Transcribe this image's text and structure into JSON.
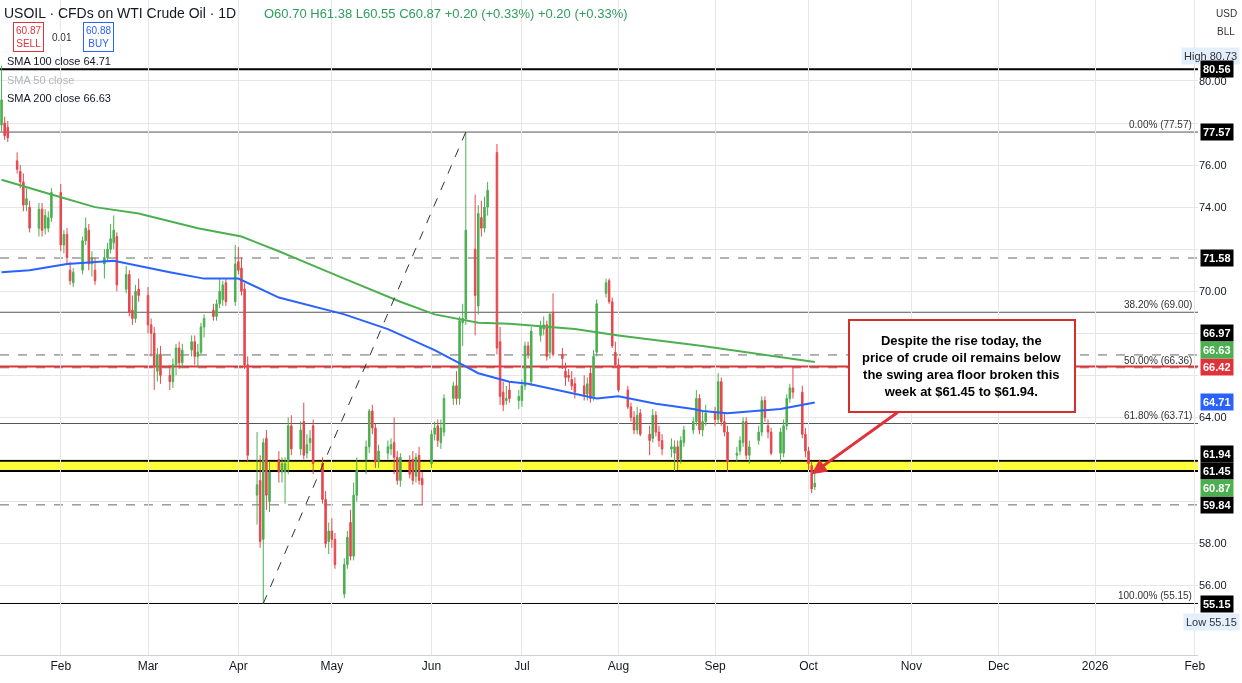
{
  "chart_data": {
    "type": "candlestick",
    "title": "USOIL · CFDs on WTI Crude Oil · 1D",
    "x": [
      "2025-01-15",
      "2025-01-16",
      "2025-01-17",
      "2025-01-20",
      "2025-01-21",
      "2025-01-22",
      "2025-01-23",
      "2025-01-24",
      "2025-01-27",
      "2025-01-28",
      "2025-01-29",
      "2025-01-30",
      "2025-01-31",
      "2025-02-03",
      "2025-02-04",
      "2025-02-05",
      "2025-02-06",
      "2025-02-07",
      "2025-02-10",
      "2025-02-11",
      "2025-02-12",
      "2025-02-13",
      "2025-02-14",
      "2025-02-17",
      "2025-02-18",
      "2025-02-19",
      "2025-02-20",
      "2025-02-21",
      "2025-02-24",
      "2025-02-25",
      "2025-02-26",
      "2025-02-27",
      "2025-02-28",
      "2025-03-03",
      "2025-03-04",
      "2025-03-05",
      "2025-03-06",
      "2025-03-07",
      "2025-03-10",
      "2025-03-11",
      "2025-03-12",
      "2025-03-13",
      "2025-03-14",
      "2025-03-17",
      "2025-03-18",
      "2025-03-19",
      "2025-03-20",
      "2025-03-21",
      "2025-03-24",
      "2025-03-25",
      "2025-03-26",
      "2025-03-27",
      "2025-03-28",
      "2025-03-31",
      "2025-04-01",
      "2025-04-02",
      "2025-04-03",
      "2025-04-04",
      "2025-04-07",
      "2025-04-08",
      "2025-04-09",
      "2025-04-10",
      "2025-04-11",
      "2025-04-14",
      "2025-04-15",
      "2025-04-16",
      "2025-04-17",
      "2025-04-18",
      "2025-04-21",
      "2025-04-22",
      "2025-04-23",
      "2025-04-24",
      "2025-04-25",
      "2025-04-28",
      "2025-04-29",
      "2025-04-30",
      "2025-05-01",
      "2025-05-02",
      "2025-05-05",
      "2025-05-06",
      "2025-05-07",
      "2025-05-08",
      "2025-05-09",
      "2025-05-12",
      "2025-05-13",
      "2025-05-14",
      "2025-05-15",
      "2025-05-16",
      "2025-05-19",
      "2025-05-20",
      "2025-05-21",
      "2025-05-22",
      "2025-05-23",
      "2025-05-26",
      "2025-05-27",
      "2025-05-28",
      "2025-05-29",
      "2025-05-30",
      "2025-06-02",
      "2025-06-03",
      "2025-06-04",
      "2025-06-05",
      "2025-06-06",
      "2025-06-09",
      "2025-06-10",
      "2025-06-11",
      "2025-06-12",
      "2025-06-13",
      "2025-06-16",
      "2025-06-17",
      "2025-06-18",
      "2025-06-19",
      "2025-06-20",
      "2025-06-23",
      "2025-06-24",
      "2025-06-25",
      "2025-06-26",
      "2025-06-27",
      "2025-06-30",
      "2025-07-01",
      "2025-07-02",
      "2025-07-03",
      "2025-07-04",
      "2025-07-07",
      "2025-07-08",
      "2025-07-09",
      "2025-07-10",
      "2025-07-11",
      "2025-07-14",
      "2025-07-15",
      "2025-07-16",
      "2025-07-17",
      "2025-07-18",
      "2025-07-21",
      "2025-07-22",
      "2025-07-23",
      "2025-07-24",
      "2025-07-25",
      "2025-07-28",
      "2025-07-29",
      "2025-07-30",
      "2025-07-31",
      "2025-08-01",
      "2025-08-04",
      "2025-08-05",
      "2025-08-06",
      "2025-08-07",
      "2025-08-08",
      "2025-08-11",
      "2025-08-12",
      "2025-08-13",
      "2025-08-14",
      "2025-08-15",
      "2025-08-18",
      "2025-08-19",
      "2025-08-20",
      "2025-08-21",
      "2025-08-22",
      "2025-08-25",
      "2025-08-26",
      "2025-08-27",
      "2025-08-28",
      "2025-08-29",
      "2025-09-01",
      "2025-09-02",
      "2025-09-03",
      "2025-09-04",
      "2025-09-05",
      "2025-09-08",
      "2025-09-09",
      "2025-09-10",
      "2025-09-11",
      "2025-09-12",
      "2025-09-15",
      "2025-09-16",
      "2025-09-17",
      "2025-09-18",
      "2025-09-19",
      "2025-09-22",
      "2025-09-23",
      "2025-09-24",
      "2025-09-25",
      "2025-09-26",
      "2025-09-29",
      "2025-09-30",
      "2025-10-01",
      "2025-10-02",
      "2025-10-03"
    ],
    "ohlc": [
      [
        77.9,
        80.73,
        77.6,
        79.1
      ],
      [
        78.0,
        78.3,
        77.2,
        77.4
      ],
      [
        77.8,
        78.1,
        77.1,
        77.3
      ],
      [
        76.2,
        76.6,
        75.6,
        75.8
      ],
      [
        75.7,
        76.0,
        74.9,
        75.2
      ],
      [
        75.2,
        75.6,
        73.8,
        74.1
      ],
      [
        74.1,
        74.9,
        73.8,
        74.4
      ],
      [
        74.0,
        74.3,
        72.8,
        73.0
      ],
      [
        73.0,
        74.2,
        72.6,
        73.9
      ],
      [
        73.9,
        74.2,
        72.6,
        72.9
      ],
      [
        73.0,
        73.9,
        72.7,
        73.6
      ],
      [
        73.0,
        73.8,
        72.8,
        73.5
      ],
      [
        73.5,
        74.9,
        73.3,
        74.7
      ],
      [
        74.7,
        75.1,
        71.9,
        72.2
      ],
      [
        72.2,
        72.9,
        71.8,
        72.7
      ],
      [
        72.7,
        73.0,
        71.3,
        71.6
      ],
      [
        71.0,
        71.4,
        70.3,
        70.5
      ],
      [
        70.4,
        71.1,
        70.2,
        70.9
      ],
      [
        71.0,
        72.6,
        70.8,
        72.4
      ],
      [
        72.4,
        73.5,
        72.2,
        73.0
      ],
      [
        72.9,
        73.2,
        71.0,
        71.3
      ],
      [
        71.3,
        71.9,
        70.7,
        71.6
      ],
      [
        71.0,
        71.6,
        70.3,
        70.5
      ],
      [
        71.3,
        72.0,
        70.6,
        71.6
      ],
      [
        71.6,
        72.3,
        71.4,
        72.0
      ],
      [
        72.0,
        73.2,
        71.8,
        72.5
      ],
      [
        72.3,
        73.6,
        72.0,
        72.9
      ],
      [
        72.6,
        72.8,
        70.0,
        70.3
      ],
      [
        70.1,
        71.2,
        69.9,
        70.8
      ],
      [
        70.8,
        71.0,
        68.8,
        69.0
      ],
      [
        69.1,
        69.8,
        68.4,
        68.7
      ],
      [
        68.7,
        70.3,
        68.5,
        70.0
      ],
      [
        70.1,
        70.6,
        69.5,
        69.8
      ],
      [
        69.8,
        70.2,
        68.0,
        68.4
      ],
      [
        68.4,
        68.7,
        66.9,
        68.0
      ],
      [
        68.0,
        68.3,
        65.3,
        66.4
      ],
      [
        66.2,
        67.3,
        65.7,
        67.0
      ],
      [
        67.0,
        67.4,
        65.6,
        66.0
      ],
      [
        66.0,
        66.5,
        65.3,
        65.7
      ],
      [
        65.7,
        66.8,
        65.4,
        66.5
      ],
      [
        66.5,
        67.5,
        66.0,
        67.3
      ],
      [
        67.3,
        67.6,
        66.3,
        66.6
      ],
      [
        66.6,
        67.5,
        66.4,
        67.2
      ],
      [
        67.2,
        67.9,
        66.9,
        67.6
      ],
      [
        67.6,
        67.9,
        66.5,
        66.9
      ],
      [
        66.9,
        67.5,
        66.4,
        67.1
      ],
      [
        67.1,
        68.5,
        67.0,
        68.3
      ],
      [
        68.3,
        68.9,
        67.8,
        68.7
      ],
      [
        69.1,
        69.4,
        68.6,
        68.8
      ],
      [
        68.8,
        69.6,
        68.6,
        69.4
      ],
      [
        69.4,
        70.6,
        69.2,
        70.0
      ],
      [
        69.6,
        70.5,
        69.3,
        70.3
      ],
      [
        70.4,
        70.6,
        69.3,
        69.5
      ],
      [
        69.5,
        72.2,
        69.3,
        71.3
      ],
      [
        71.4,
        72.1,
        70.8,
        71.0
      ],
      [
        71.1,
        71.6,
        69.8,
        70.0
      ],
      [
        70.1,
        70.4,
        66.3,
        66.5
      ],
      [
        66.5,
        66.9,
        61.9,
        62.2
      ],
      [
        60.3,
        63.3,
        58.9,
        60.8
      ],
      [
        61.0,
        62.2,
        57.8,
        58.1
      ],
      [
        58.2,
        63.0,
        55.15,
        62.8
      ],
      [
        63.0,
        63.4,
        59.6,
        60.3
      ],
      [
        60.0,
        61.9,
        59.5,
        61.4
      ],
      [
        62.0,
        62.4,
        60.9,
        61.4
      ],
      [
        61.4,
        62.1,
        60.9,
        61.8
      ],
      [
        61.4,
        62.1,
        59.9,
        61.8
      ],
      [
        61.9,
        64.0,
        61.3,
        63.6
      ],
      [
        63.6,
        64.1,
        62.2,
        62.5
      ],
      [
        62.5,
        63.8,
        62.2,
        63.4
      ],
      [
        63.8,
        64.7,
        62.0,
        62.2
      ],
      [
        62.3,
        63.2,
        62.05,
        62.7
      ],
      [
        62.8,
        63.4,
        62.4,
        63.0
      ],
      [
        63.6,
        63.9,
        61.3,
        61.8
      ],
      [
        61.8,
        62.1,
        59.9,
        60.1
      ],
      [
        60.1,
        60.5,
        57.8,
        58.0
      ],
      [
        58.1,
        59.0,
        57.5,
        58.6
      ],
      [
        58.6,
        59.2,
        57.8,
        58.2
      ],
      [
        58.2,
        58.5,
        56.8,
        57.0
      ],
      [
        55.6,
        57.3,
        55.4,
        57.0
      ],
      [
        57.0,
        58.6,
        56.8,
        58.3
      ],
      [
        59.0,
        59.6,
        57.2,
        57.4
      ],
      [
        57.4,
        60.9,
        57.2,
        60.3
      ],
      [
        60.3,
        62.1,
        60.0,
        61.5
      ],
      [
        62.0,
        62.9,
        61.3,
        62.6
      ],
      [
        62.6,
        64.4,
        62.3,
        64.3
      ],
      [
        64.3,
        64.6,
        63.2,
        63.5
      ],
      [
        63.5,
        63.7,
        61.6,
        61.9
      ],
      [
        61.9,
        62.7,
        61.6,
        62.4
      ],
      [
        62.3,
        62.9,
        62.0,
        62.6
      ],
      [
        62.5,
        63.0,
        62.2,
        62.7
      ],
      [
        62.8,
        64.0,
        61.3,
        62.1
      ],
      [
        62.1,
        62.4,
        60.8,
        61.0
      ],
      [
        61.0,
        62.3,
        60.7,
        62.1
      ],
      [
        61.9,
        62.2,
        61.1,
        61.3
      ],
      [
        62.0,
        62.4,
        60.8,
        61.0
      ],
      [
        61.2,
        62.3,
        60.9,
        62.1
      ],
      [
        62.2,
        62.6,
        60.8,
        61.0
      ],
      [
        61.1,
        61.4,
        59.84,
        60.8
      ],
      [
        61.8,
        63.4,
        61.6,
        63.2
      ],
      [
        63.2,
        63.8,
        62.9,
        63.5
      ],
      [
        63.6,
        63.9,
        62.6,
        62.9
      ],
      [
        62.8,
        63.9,
        62.5,
        63.5
      ],
      [
        63.3,
        65.1,
        63.1,
        64.9
      ],
      [
        64.9,
        65.7,
        64.6,
        65.5
      ],
      [
        65.5,
        66.2,
        64.6,
        64.9
      ],
      [
        64.9,
        68.8,
        64.6,
        68.6
      ],
      [
        68.5,
        69.4,
        67.4,
        68.7
      ],
      [
        68.7,
        77.57,
        68.4,
        72.9
      ],
      [
        72.0,
        74.6,
        67.9,
        69.8
      ],
      [
        69.3,
        74.1,
        68.9,
        73.7
      ],
      [
        73.5,
        74.3,
        72.6,
        73.0
      ],
      [
        73.0,
        74.5,
        72.8,
        74.0
      ],
      [
        74.0,
        75.2,
        73.6,
        74.8
      ],
      [
        76.6,
        77.0,
        67.0,
        67.3
      ],
      [
        67.6,
        68.3,
        64.6,
        65.0
      ],
      [
        65.2,
        65.7,
        64.3,
        64.6
      ],
      [
        64.8,
        65.5,
        64.6,
        64.9
      ],
      [
        65.3,
        65.7,
        64.7,
        64.9
      ],
      [
        64.8,
        65.3,
        64.4,
        65.0
      ],
      [
        64.8,
        65.8,
        64.5,
        65.5
      ],
      [
        65.5,
        67.6,
        65.3,
        67.4
      ],
      [
        67.4,
        67.6,
        66.8,
        67.0
      ],
      [
        65.7,
        68.3,
        65.5,
        68.1
      ],
      [
        67.9,
        68.6,
        67.6,
        68.3
      ],
      [
        68.2,
        68.8,
        67.9,
        68.4
      ],
      [
        68.4,
        68.6,
        66.7,
        66.9
      ],
      [
        67.1,
        69.0,
        66.8,
        68.9
      ],
      [
        69.0,
        69.9,
        66.9,
        67.0
      ],
      [
        67.0,
        67.3,
        66.3,
        66.8
      ],
      [
        66.2,
        66.6,
        65.5,
        65.9
      ],
      [
        66.0,
        66.3,
        65.7,
        65.9
      ],
      [
        65.8,
        66.2,
        65.3,
        65.5
      ],
      [
        65.6,
        65.9,
        64.9,
        65.2
      ],
      [
        65.5,
        66.0,
        64.8,
        65.1
      ],
      [
        65.1,
        65.9,
        64.8,
        65.6
      ],
      [
        66.1,
        66.4,
        64.7,
        64.9
      ],
      [
        65.0,
        67.2,
        64.8,
        66.9
      ],
      [
        67.1,
        69.6,
        66.9,
        69.4
      ],
      [
        69.9,
        70.6,
        69.7,
        70.4
      ],
      [
        70.5,
        70.6,
        69.4,
        69.5
      ],
      [
        69.5,
        69.7,
        67.3,
        67.4
      ],
      [
        67.1,
        67.6,
        66.4,
        66.5
      ],
      [
        66.5,
        66.8,
        65.2,
        65.3
      ],
      [
        65.3,
        65.5,
        64.4,
        64.5
      ],
      [
        64.5,
        64.7,
        63.8,
        64.0
      ],
      [
        64.0,
        64.3,
        63.2,
        63.4
      ],
      [
        63.4,
        64.5,
        63.2,
        64.1
      ],
      [
        64.2,
        64.4,
        63.1,
        63.2
      ],
      [
        63.2,
        63.6,
        62.2,
        62.9
      ],
      [
        63.0,
        64.4,
        62.8,
        64.1
      ],
      [
        64.1,
        64.3,
        63.1,
        63.3
      ],
      [
        63.3,
        63.6,
        62.6,
        62.9
      ],
      [
        62.9,
        63.2,
        62.2,
        62.5
      ],
      [
        62.5,
        63.0,
        62.1,
        62.6
      ],
      [
        62.3,
        62.9,
        61.45,
        62.6
      ],
      [
        62.6,
        62.9,
        61.5,
        62.0
      ],
      [
        62.0,
        63.1,
        61.8,
        62.9
      ],
      [
        62.8,
        63.6,
        62.6,
        63.4
      ],
      [
        63.4,
        64.0,
        63.2,
        63.8
      ],
      [
        63.8,
        65.3,
        63.6,
        64.9
      ],
      [
        64.9,
        65.1,
        63.2,
        63.4
      ],
      [
        63.4,
        64.3,
        63.1,
        63.8
      ],
      [
        63.8,
        64.6,
        63.6,
        64.2
      ],
      [
        64.2,
        64.5,
        63.6,
        63.9
      ],
      [
        63.9,
        66.1,
        63.7,
        65.7
      ],
      [
        65.7,
        65.9,
        63.6,
        63.8
      ],
      [
        63.8,
        64.2,
        63.1,
        63.3
      ],
      [
        63.3,
        63.6,
        61.4,
        61.9
      ],
      [
        62.2,
        62.6,
        61.9,
        62.3
      ],
      [
        62.4,
        63.1,
        62.2,
        62.9
      ],
      [
        62.8,
        64.0,
        62.6,
        63.8
      ],
      [
        63.8,
        64.0,
        62.0,
        62.2
      ],
      [
        62.2,
        62.9,
        61.8,
        62.6
      ],
      [
        62.9,
        63.6,
        62.7,
        63.3
      ],
      [
        63.3,
        65.0,
        63.1,
        64.8
      ],
      [
        64.8,
        65.0,
        63.8,
        64.0
      ],
      [
        63.6,
        63.9,
        63.0,
        63.3
      ],
      [
        63.3,
        63.5,
        62.2,
        62.3
      ],
      [
        62.3,
        63.5,
        61.8,
        63.3
      ],
      [
        62.3,
        63.9,
        62.1,
        63.6
      ],
      [
        63.6,
        65.1,
        63.4,
        64.9
      ],
      [
        64.9,
        65.6,
        64.7,
        65.4
      ],
      [
        65.4,
        66.4,
        64.9,
        65.2
      ],
      [
        65.2,
        65.5,
        63.0,
        63.2
      ],
      [
        63.2,
        63.5,
        62.1,
        62.4
      ],
      [
        62.4,
        62.6,
        61.5,
        61.8
      ],
      [
        61.7,
        61.9,
        60.4,
        60.6
      ],
      [
        60.7,
        61.38,
        60.55,
        60.87
      ]
    ],
    "series": [
      {
        "type": "line",
        "color": "#2962ff",
        "x": [
          "2025-01-15",
          "2025-01-24",
          "2025-02-05",
          "2025-02-20",
          "2025-03-10",
          "2025-03-21",
          "2025-04-01",
          "2025-04-14",
          "2025-05-05",
          "2025-05-19",
          "2025-06-03",
          "2025-06-12",
          "2025-06-17",
          "2025-06-27",
          "2025-07-03",
          "2025-07-25",
          "2025-08-01",
          "2025-08-13",
          "2025-08-25",
          "2025-08-28",
          "2025-09-05",
          "2025-09-22",
          "2025-10-03"
        ],
        "values": [
          70.9,
          71.0,
          71.3,
          71.45,
          70.9,
          70.6,
          70.6,
          69.7,
          68.9,
          68.2,
          67.2,
          66.5,
          66.1,
          65.7,
          65.6,
          64.9,
          65.0,
          64.65,
          64.4,
          64.3,
          64.2,
          64.4,
          64.71
        ]
      },
      {
        "type": "line",
        "color": "#4caf50",
        "x": [
          "2025-01-15",
          "2025-01-31",
          "2025-02-14",
          "2025-02-28",
          "2025-03-19",
          "2025-04-02",
          "2025-04-14",
          "2025-05-05",
          "2025-05-23",
          "2025-06-03",
          "2025-06-17",
          "2025-06-27",
          "2025-07-18",
          "2025-08-01",
          "2025-08-28",
          "2025-10-03"
        ],
        "values": [
          75.3,
          74.6,
          74.0,
          73.7,
          73.0,
          72.6,
          71.9,
          70.6,
          69.5,
          68.9,
          68.5,
          68.45,
          68.2,
          67.9,
          67.4,
          66.63
        ]
      },
      {
        "type": "line",
        "color": "#333333",
        "line_style": "dashed",
        "x": [
          "2025-04-09",
          "2025-06-13"
        ],
        "values": [
          55.15,
          77.57
        ]
      }
    ],
    "ref_lines": [
      {
        "axis": "y",
        "value": 80.56,
        "label": "80.56",
        "color": "#000000",
        "line_style": "solid"
      },
      {
        "axis": "y",
        "value": 77.57,
        "label": "0.00% (77.57)",
        "color": "#555555",
        "line_style": "solid"
      },
      {
        "axis": "y",
        "value": 71.58,
        "label": "71.58",
        "color": "#666666",
        "line_style": "dashed"
      },
      {
        "axis": "y",
        "value": 69.0,
        "label": "38.20% (69.00)",
        "color": "#555555",
        "line_style": "solid"
      },
      {
        "axis": "y",
        "value": 66.97,
        "label": "66.97",
        "color": "#666666",
        "line_style": "dashed"
      },
      {
        "axis": "y",
        "value": 66.36,
        "label": "50.00% (66.36)",
        "color": "#777777",
        "line_style": "dashed"
      },
      {
        "axis": "y",
        "value": 66.42,
        "label": "66.42",
        "color": "#e0323a",
        "line_style": "solid"
      },
      {
        "axis": "y",
        "value": 63.71,
        "label": "61.80% (63.71)",
        "color": "#555555",
        "line_style": "solid"
      },
      {
        "axis": "y",
        "value": 61.94,
        "label": "61.94",
        "color": "#000000",
        "line_style": "solid"
      },
      {
        "axis": "y",
        "value": 61.45,
        "label": "61.45",
        "color": "#000000",
        "line_style": "solid"
      },
      {
        "axis": "y",
        "value": 59.84,
        "label": "59.84",
        "color": "#666666",
        "line_style": "dashed"
      },
      {
        "axis": "y",
        "value": 55.15,
        "label": "100.00% (55.15)",
        "color": "#000000",
        "line_style": "solid"
      }
    ],
    "bands": [
      {
        "axis": "y",
        "from": 61.45,
        "to": 61.94,
        "color": "#ffff3b"
      }
    ],
    "annotations": [
      "O60.70 H61.38 L60.55 C60.87 +0.20 (+0.33%) +0.20 (+0.33%)",
      "60.87\nSELL",
      "0.01",
      "60.88\nBUY",
      "SMA 100 close 64.71",
      "SMA 50 close",
      "SMA 200 close 66.63",
      "USD",
      "BLL",
      "High 80.73",
      "60.87",
      "Low 55.15",
      "77.57",
      "66.63",
      "64.71",
      "55.15",
      {
        "text": "Despite the rise today, the\nprice of crude oil remains below\nthe swing area floor broken this\nweek at $61.45 to $61.94.",
        "x": "2025-10-02",
        "y": 61.3
      }
    ],
    "xlim": [
      "2025-01-14T12:00",
      "2026-02-03"
    ],
    "xticks": [
      {
        "value": "2025-02-03",
        "label": "Feb"
      },
      {
        "value": "2025-03-03",
        "label": "Mar"
      },
      {
        "value": "2025-04-01",
        "label": "Apr"
      },
      {
        "value": "2025-05-01",
        "label": "May"
      },
      {
        "value": "2025-06-02",
        "label": "Jun"
      },
      {
        "value": "2025-07-01",
        "label": "Jul"
      },
      {
        "value": "2025-08-01",
        "label": "Aug"
      },
      {
        "value": "2025-09-01",
        "label": "Sep"
      },
      {
        "value": "2025-10-01",
        "label": "Oct"
      },
      {
        "value": "2025-11-03",
        "label": "Nov"
      },
      {
        "value": "2025-12-01",
        "label": "Dec"
      },
      {
        "value": "2026-01-01",
        "label": "2026"
      },
      {
        "value": "2026-02-02",
        "label": "Feb"
      }
    ],
    "ylim": [
      52.7,
      83.85
    ],
    "yticks": [
      {
        "value": 56,
        "label": "56.00"
      },
      {
        "value": 58,
        "label": "58.00"
      },
      {
        "value": 60,
        "label": null
      },
      {
        "value": 62,
        "label": null
      },
      {
        "value": 64,
        "label": "64.00"
      },
      {
        "value": 66,
        "label": null
      },
      {
        "value": 68,
        "label": null
      },
      {
        "value": 70,
        "label": "70.00"
      },
      {
        "value": 72,
        "label": null
      },
      {
        "value": 74,
        "label": "74.00"
      },
      {
        "value": 76,
        "label": "76.00"
      },
      {
        "value": 78,
        "label": null
      },
      {
        "value": 80,
        "label": "80.00"
      }
    ],
    "grid": true
  }
}
